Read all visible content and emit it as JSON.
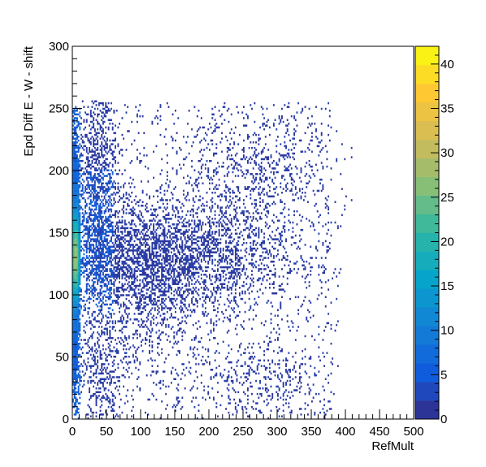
{
  "chart_data": {
    "type": "heatmap",
    "title": "",
    "xlabel": "RefMult",
    "ylabel": "Epd Diff E - W - shift",
    "xlim": [
      0,
      500
    ],
    "ylim": [
      0,
      300
    ],
    "x_ticks": [
      "0",
      "50",
      "100",
      "150",
      "200",
      "250",
      "300",
      "350",
      "400",
      "450",
      "500"
    ],
    "y_ticks": [
      "0",
      "50",
      "100",
      "150",
      "200",
      "250",
      "300"
    ],
    "z_range": [
      0,
      42
    ],
    "z_ticks": [
      "0",
      "5",
      "10",
      "15",
      "20",
      "25",
      "30",
      "35",
      "40"
    ],
    "palette": [
      "#352a87",
      "#0f5cdd",
      "#1481d6",
      "#06a4ca",
      "#2eb7a4",
      "#87bf77",
      "#d1bb59",
      "#fec832",
      "#f9fb0e"
    ],
    "density_clusters": [
      {
        "x_range": [
          0,
          10
        ],
        "y_range": [
          5,
          245
        ],
        "peak_counts": 30,
        "peak_y": 130
      },
      {
        "x_range": [
          10,
          70
        ],
        "y_range": [
          60,
          250
        ],
        "peak_counts": 6
      },
      {
        "x_range": [
          20,
          70
        ],
        "y_range": [
          0,
          70
        ],
        "peak_counts": 3
      },
      {
        "x_range": [
          60,
          400
        ],
        "y_range": [
          60,
          200
        ],
        "peak_counts": 3
      },
      {
        "x_range": [
          160,
          380
        ],
        "y_range": [
          150,
          255
        ],
        "peak_counts": 1
      },
      {
        "x_range": [
          180,
          380
        ],
        "y_range": [
          0,
          70
        ],
        "peak_counts": 1
      }
    ]
  }
}
